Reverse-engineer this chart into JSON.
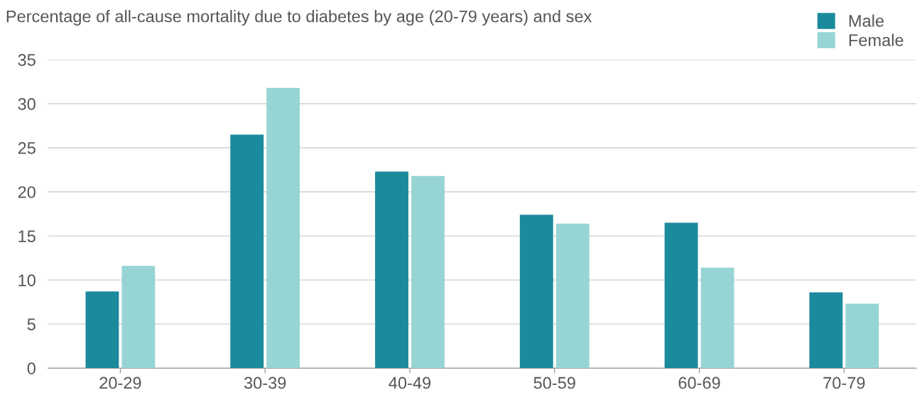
{
  "chart_data": {
    "type": "bar",
    "title": "Percentage of all-cause mortality due to diabetes by age (20-79 years) and sex",
    "categories": [
      "20-29",
      "30-39",
      "40-49",
      "50-59",
      "60-69",
      "70-79"
    ],
    "series": [
      {
        "name": "Male",
        "color": "#1b8a9c",
        "values": [
          8.7,
          26.5,
          22.3,
          17.4,
          16.5,
          8.6
        ]
      },
      {
        "name": "Female",
        "color": "#96d5d3",
        "values": [
          11.6,
          31.8,
          21.8,
          16.4,
          11.4,
          7.3
        ]
      }
    ],
    "ylim": [
      0,
      35
    ],
    "yticks": [
      0,
      5,
      10,
      15,
      20,
      25,
      30,
      35
    ],
    "grid": "y",
    "legend": "top right"
  }
}
